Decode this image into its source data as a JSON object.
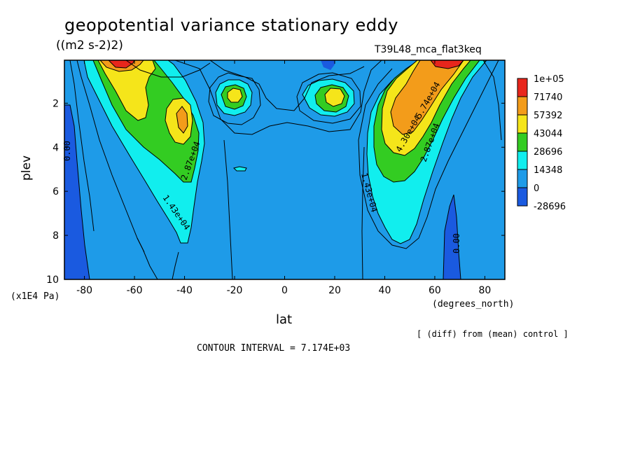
{
  "title": "geopotential variance stationary eddy",
  "units": "((m2 s-2)2)",
  "run_name": "T39L48_mca_flat3keq",
  "note": "[ (diff) from (mean) control ]",
  "contour_interval": "CONTOUR INTERVAL = 7.174E+03",
  "chart_data": {
    "type": "heatmap",
    "xlabel": "lat",
    "x_units": "(degrees_north)",
    "ylabel": "plev",
    "y_units": "(x1E4 Pa)",
    "xlim": [
      -88,
      88
    ],
    "ylim": [
      10,
      0.05
    ],
    "x_ticks": [
      -80,
      -60,
      -40,
      -20,
      0,
      20,
      40,
      60,
      80
    ],
    "x_tick_labels": [
      "-80",
      "-60",
      "-40",
      "-20",
      "0",
      "20",
      "40",
      "60",
      "80"
    ],
    "y_ticks": [
      2,
      4,
      6,
      8,
      10
    ],
    "y_tick_labels": [
      "2",
      "4",
      "6",
      "8",
      "10"
    ],
    "colorbar": {
      "labels": [
        "1e+05",
        "71740",
        "57392",
        "43044",
        "28696",
        "14348",
        "0",
        "-28696"
      ],
      "colors": [
        "#e8261c",
        "#f39c1a",
        "#f5e51a",
        "#33cc22",
        "#11eeee",
        "#1e9be8",
        "#1a5ae0"
      ]
    },
    "contour_labels": [
      "0.00",
      "0.00",
      "1.43e+04",
      "1.43e+04",
      "2.87e+04",
      "2.87e+04",
      "4.30e+04",
      "5.74e+04"
    ],
    "features": [
      {
        "name": "SH storm track max",
        "lat": -66,
        "plev": 0.2,
        "value": 100000
      },
      {
        "name": "SH mid max",
        "lat": -40,
        "plev": 2.8,
        "value": 57392
      },
      {
        "name": "SH subtropical max",
        "lat": -20,
        "plev": 1.6,
        "value": 50000
      },
      {
        "name": "NH subtropical max",
        "lat": 21,
        "plev": 1.6,
        "value": 50000
      },
      {
        "name": "NH mid max",
        "lat": 48,
        "plev": 2.4,
        "value": 71740
      },
      {
        "name": "NH polar max",
        "lat": 63,
        "plev": 0.2,
        "value": 100000
      },
      {
        "name": "SH negative region",
        "lat": -85,
        "plev": 7,
        "value": -20000
      },
      {
        "name": "NH negative region",
        "lat": 67,
        "plev": 8,
        "value": -20000
      }
    ]
  }
}
